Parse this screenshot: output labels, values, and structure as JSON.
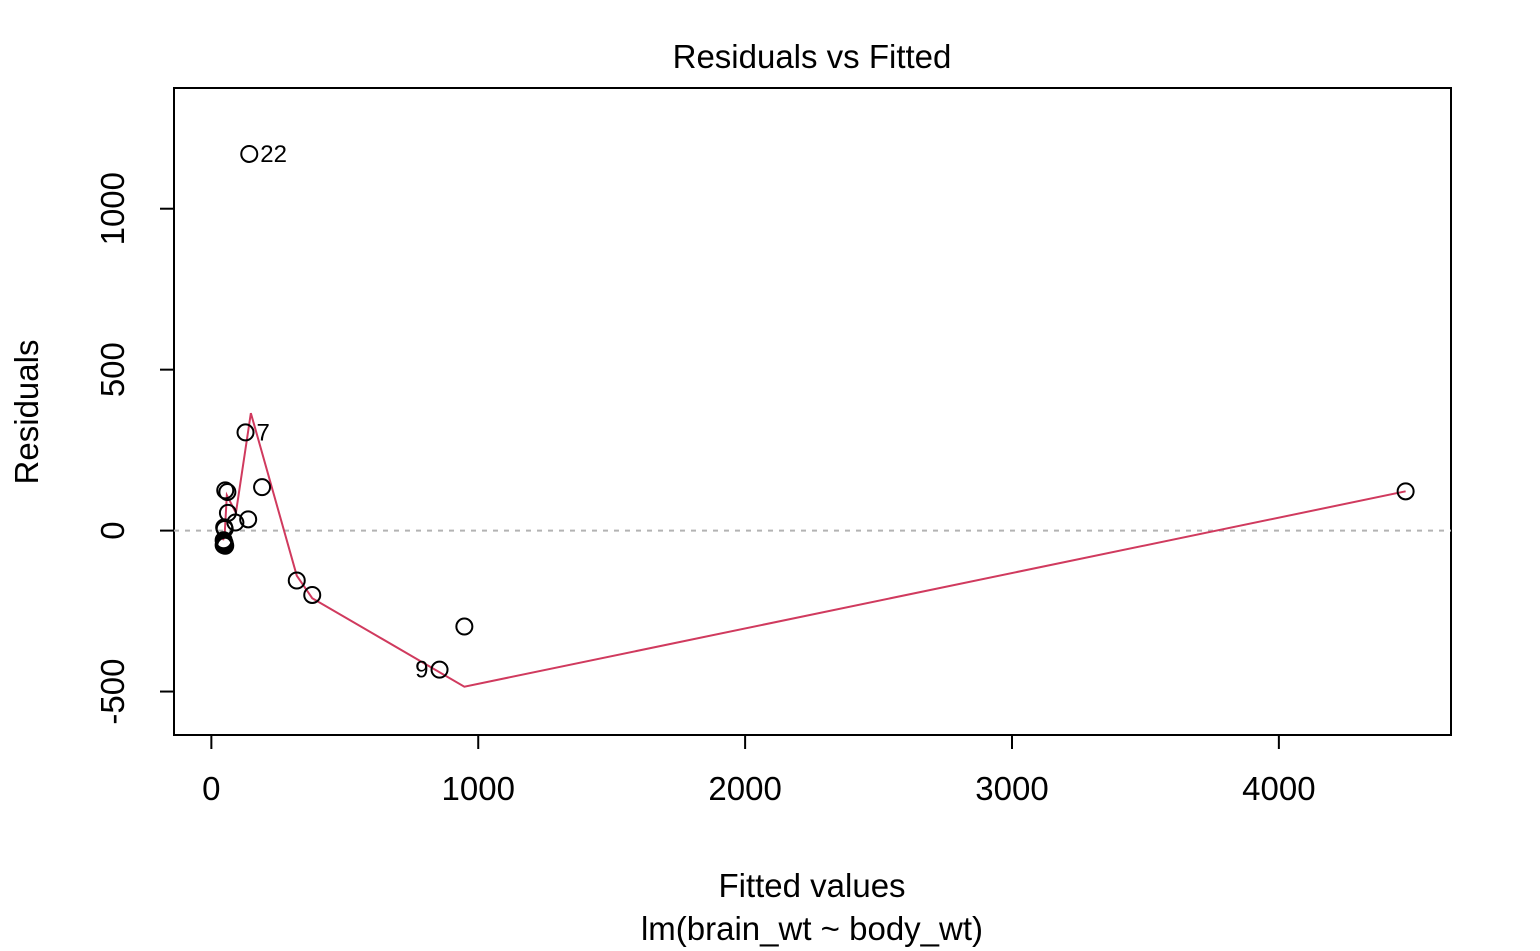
{
  "chart_data": {
    "type": "scatter",
    "title": "Residuals vs Fitted",
    "xlabel": "Fitted values",
    "subtitle": "lm(brain_wt ~ body_wt)",
    "ylabel": "Residuals",
    "xlim": [
      -140,
      4645
    ],
    "ylim": [
      -635,
      1375
    ],
    "xticks": [
      0,
      1000,
      2000,
      3000,
      4000
    ],
    "yticks": [
      -500,
      0,
      500,
      1000
    ],
    "xtick_labels": [
      "0",
      "1000",
      "2000",
      "3000",
      "4000"
    ],
    "ytick_labels": [
      "-500",
      "0",
      "500",
      "1000"
    ],
    "reference_line": 0,
    "colors": {
      "points": "#000000",
      "smooth": "#D03A5E",
      "reference": "#B3B3B3"
    },
    "points": [
      {
        "x": 142,
        "y": 1170
      },
      {
        "x": 128,
        "y": 305
      },
      {
        "x": 190,
        "y": 135
      },
      {
        "x": 52,
        "y": 125
      },
      {
        "x": 60,
        "y": 120
      },
      {
        "x": 4475,
        "y": 122
      },
      {
        "x": 62,
        "y": 55
      },
      {
        "x": 138,
        "y": 35
      },
      {
        "x": 90,
        "y": 25
      },
      {
        "x": 48,
        "y": 10
      },
      {
        "x": 50,
        "y": 5
      },
      {
        "x": 46,
        "y": -30
      },
      {
        "x": 47,
        "y": -35
      },
      {
        "x": 49,
        "y": -38
      },
      {
        "x": 50,
        "y": -40
      },
      {
        "x": 48,
        "y": -42
      },
      {
        "x": 46,
        "y": -45
      },
      {
        "x": 52,
        "y": -47
      },
      {
        "x": 320,
        "y": -155
      },
      {
        "x": 378,
        "y": -200
      },
      {
        "x": 948,
        "y": -298
      },
      {
        "x": 855,
        "y": -432
      }
    ],
    "labeled_points": [
      {
        "x": 142,
        "y": 1170,
        "label": "22",
        "side": "right"
      },
      {
        "x": 128,
        "y": 305,
        "label": "7",
        "side": "right"
      },
      {
        "x": 855,
        "y": -432,
        "label": "9",
        "side": "left"
      }
    ],
    "smooth_line": [
      {
        "x": 44,
        "y": -30
      },
      {
        "x": 50,
        "y": -10
      },
      {
        "x": 58,
        "y": 110
      },
      {
        "x": 92,
        "y": 55
      },
      {
        "x": 148,
        "y": 365
      },
      {
        "x": 320,
        "y": -140
      },
      {
        "x": 378,
        "y": -210
      },
      {
        "x": 948,
        "y": -485
      },
      {
        "x": 4475,
        "y": 122
      }
    ]
  }
}
